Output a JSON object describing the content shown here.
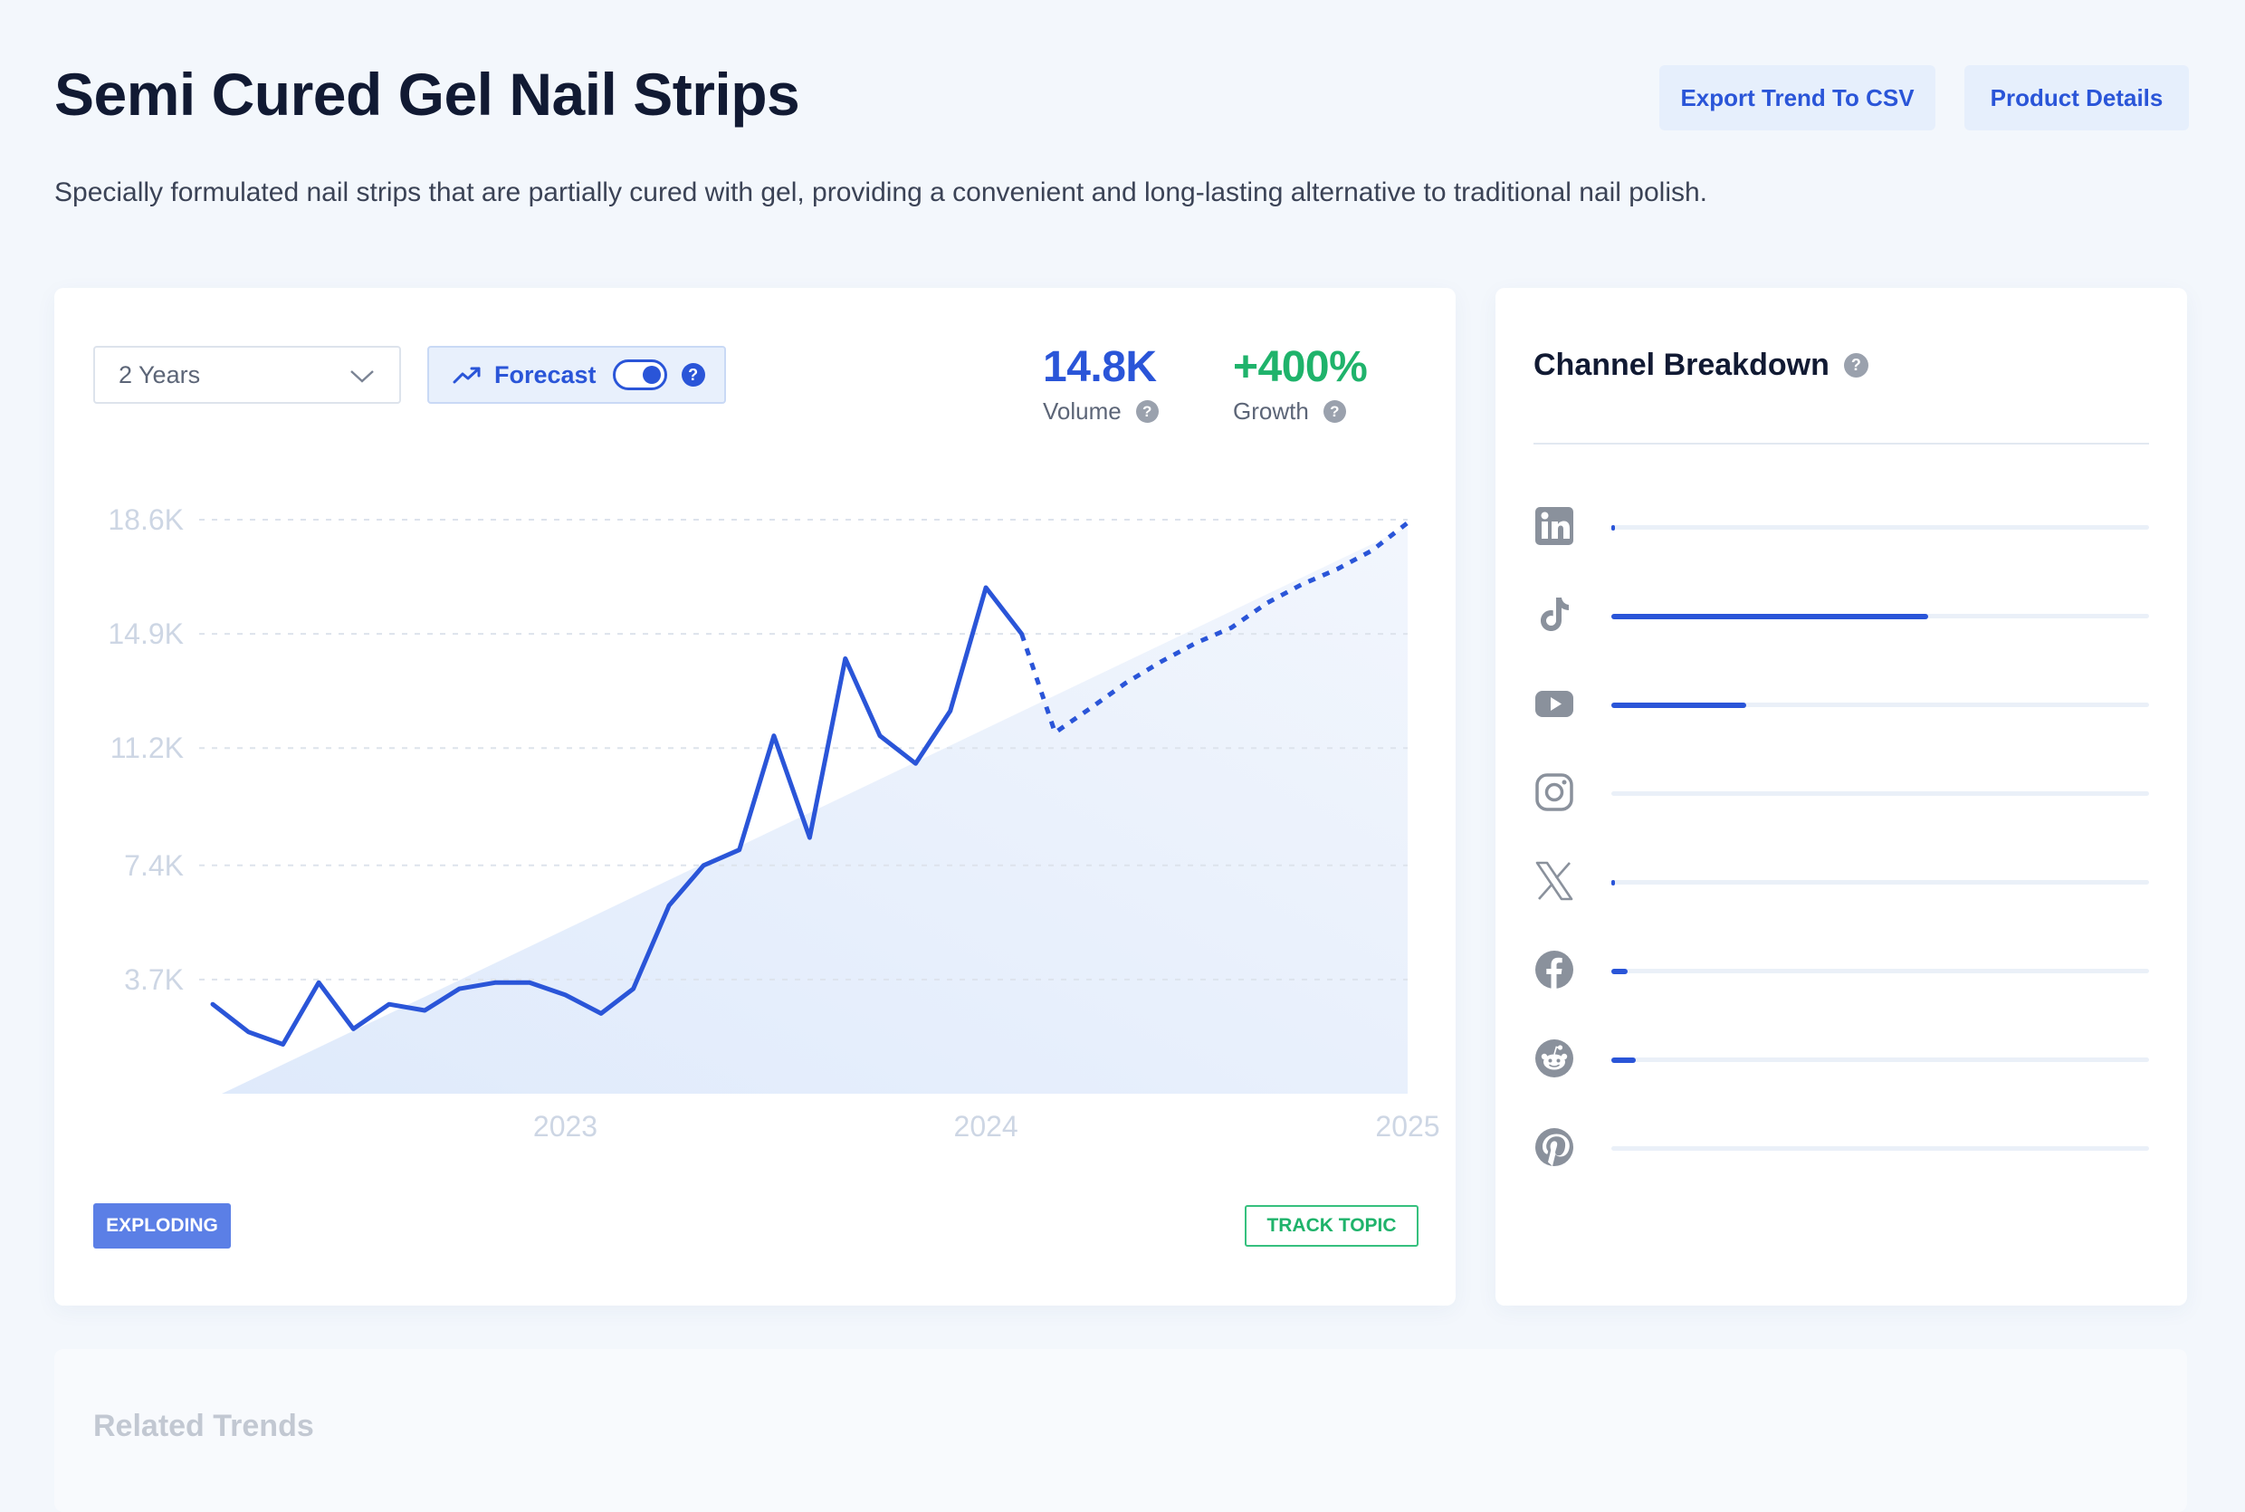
{
  "header": {
    "title": "Semi Cured Gel Nail Strips",
    "description": "Specially formulated nail strips that are partially cured with gel, providing a convenient and long-lasting alternative to traditional nail polish.",
    "export_label": "Export Trend To CSV",
    "details_label": "Product Details"
  },
  "controls": {
    "range_value": "2 Years",
    "forecast_label": "Forecast",
    "forecast_on": true
  },
  "stats": {
    "volume_value": "14.8K",
    "volume_label": "Volume",
    "growth_value": "+400%",
    "growth_label": "Growth"
  },
  "chart_data": {
    "type": "line",
    "x_ticks": [
      "2023",
      "2024",
      "2025"
    ],
    "y_ticks": [
      "3.7K",
      "7.4K",
      "11.2K",
      "14.9K",
      "18.6K"
    ],
    "ylim": [
      0,
      18600
    ],
    "grid": true,
    "series": [
      {
        "style": "solid",
        "color": "#2a55d8",
        "points": [
          [
            "2022-03-01",
            2900
          ],
          [
            "2022-04-01",
            2000
          ],
          [
            "2022-05-01",
            1600
          ],
          [
            "2022-06-01",
            3600
          ],
          [
            "2022-07-01",
            2100
          ],
          [
            "2022-08-01",
            2900
          ],
          [
            "2022-09-01",
            2700
          ],
          [
            "2022-10-01",
            3400
          ],
          [
            "2022-11-01",
            3600
          ],
          [
            "2022-12-01",
            3600
          ],
          [
            "2023-01-01",
            3200
          ],
          [
            "2023-02-01",
            2600
          ],
          [
            "2023-03-01",
            3400
          ],
          [
            "2023-04-01",
            6100
          ],
          [
            "2023-05-01",
            7400
          ],
          [
            "2023-06-01",
            7900
          ],
          [
            "2023-07-01",
            11600
          ],
          [
            "2023-08-01",
            8300
          ],
          [
            "2023-09-01",
            14100
          ],
          [
            "2023-10-01",
            11600
          ],
          [
            "2023-11-01",
            10700
          ],
          [
            "2023-12-01",
            12400
          ],
          [
            "2024-01-01",
            16400
          ],
          [
            "2024-02-01",
            14900
          ]
        ]
      },
      {
        "style": "dashed",
        "color": "#2a55d8",
        "points": [
          [
            "2024-02-01",
            14900
          ],
          [
            "2024-03-01",
            11700
          ],
          [
            "2024-04-01",
            12500
          ],
          [
            "2024-05-01",
            13300
          ],
          [
            "2024-06-01",
            14000
          ],
          [
            "2024-07-01",
            14600
          ],
          [
            "2024-08-01",
            15100
          ],
          [
            "2024-09-01",
            15900
          ],
          [
            "2024-10-01",
            16500
          ],
          [
            "2024-11-01",
            17000
          ],
          [
            "2024-12-01",
            17600
          ],
          [
            "2025-01-01",
            18500
          ]
        ]
      }
    ],
    "shaded_trend": true
  },
  "badges": {
    "status": "EXPLODING",
    "track": "TRACK TOPIC"
  },
  "channels": {
    "title": "Channel Breakdown",
    "items": [
      {
        "name": "linkedin-icon",
        "share": 0.004
      },
      {
        "name": "tiktok-icon",
        "share": 0.59
      },
      {
        "name": "youtube-icon",
        "share": 0.25
      },
      {
        "name": "instagram-icon",
        "share": 0.0
      },
      {
        "name": "x-icon",
        "share": 0.004
      },
      {
        "name": "facebook-icon",
        "share": 0.03
      },
      {
        "name": "reddit-icon",
        "share": 0.045
      },
      {
        "name": "pinterest-icon",
        "share": 0.0
      }
    ]
  },
  "related": {
    "title": "Related Trends"
  },
  "colors": {
    "accent": "#2a55d8",
    "growth": "#1fb36b",
    "status_badge": "#5b7fe6"
  }
}
